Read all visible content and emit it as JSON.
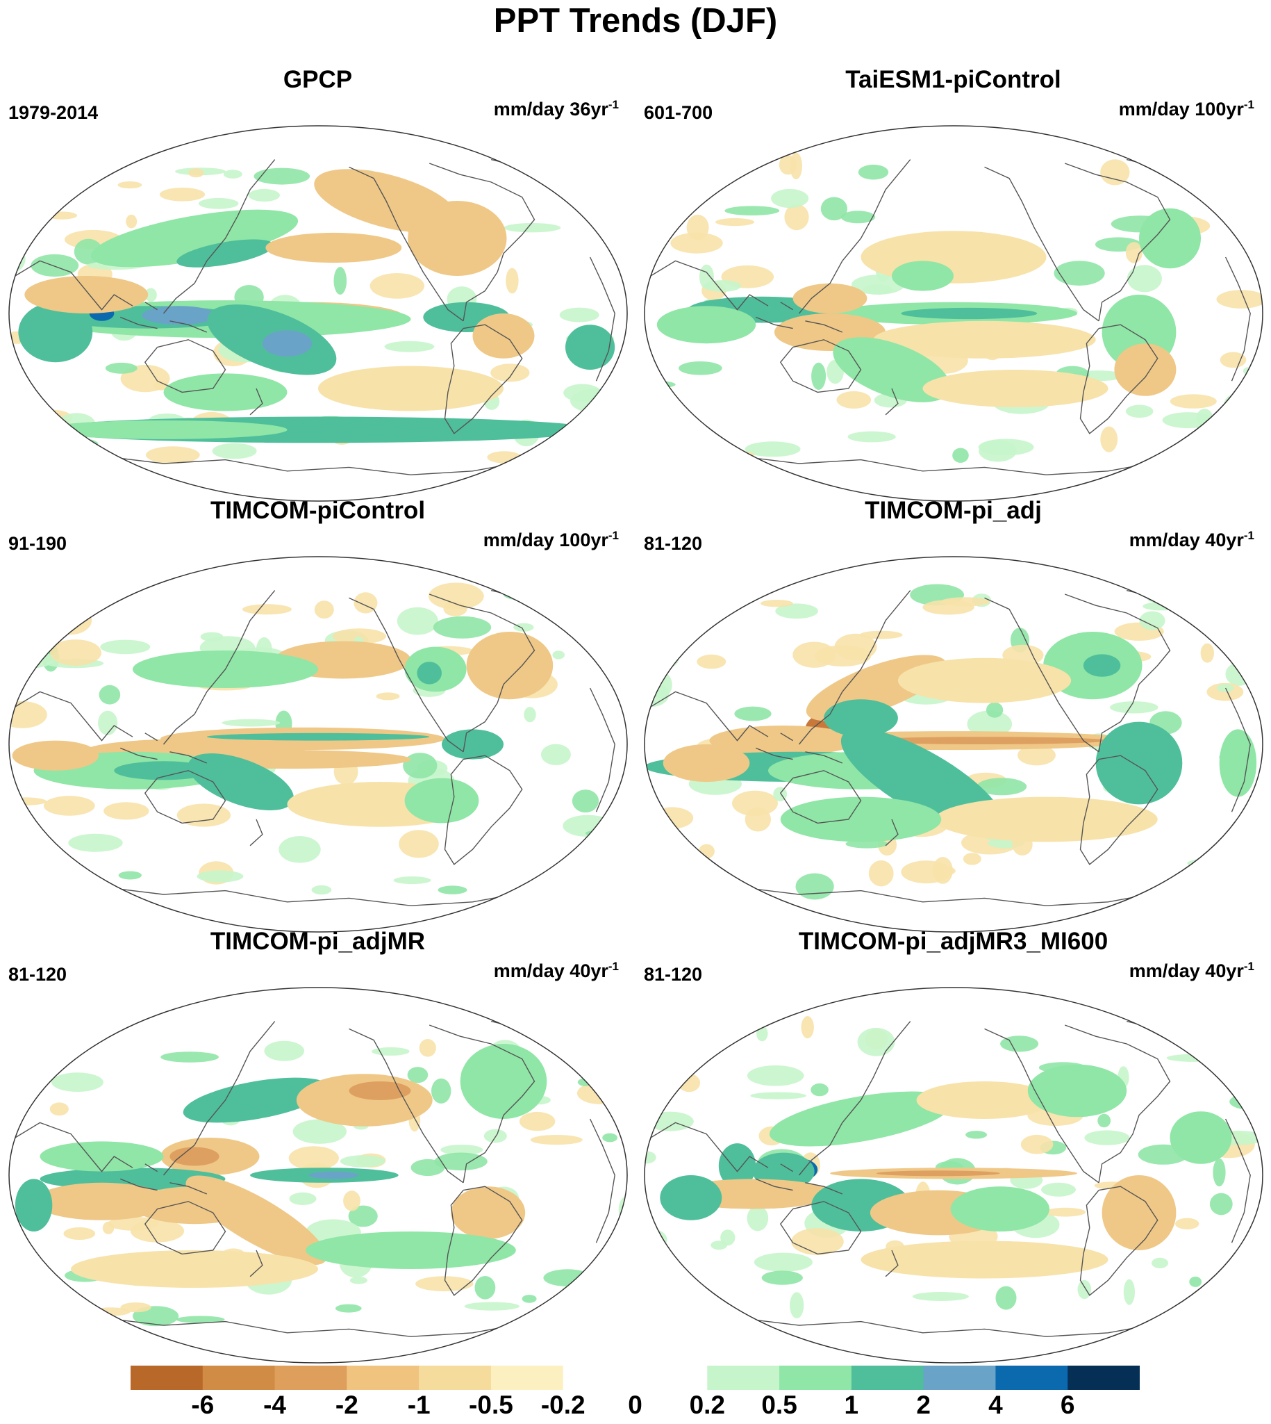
{
  "figure": {
    "title": "PPT Trends (DJF)"
  },
  "panels": [
    {
      "title": "GPCP",
      "period": "1979-2014",
      "units_main": "mm/day 36yr",
      "units_exp": "-1",
      "pattern": "gpcp"
    },
    {
      "title": "TaiESM1-piControl",
      "period": "601-700",
      "units_main": "mm/day 100yr",
      "units_exp": "-1",
      "pattern": "taiesm"
    },
    {
      "title": "TIMCOM-piControl",
      "period": "91-190",
      "units_main": "mm/day 100yr",
      "units_exp": "-1",
      "pattern": "timcom"
    },
    {
      "title": "TIMCOM-pi_adj",
      "period": "81-120",
      "units_main": "mm/day 40yr",
      "units_exp": "-1",
      "pattern": "adj"
    },
    {
      "title": "TIMCOM-pi_adjMR",
      "period": "81-120",
      "units_main": "mm/day 40yr",
      "units_exp": "-1",
      "pattern": "adjmr"
    },
    {
      "title": "TIMCOM-pi_adjMR3_MI600",
      "period": "81-120",
      "units_main": "mm/day 40yr",
      "units_exp": "-1",
      "pattern": "mi600"
    }
  ],
  "colorbar": {
    "labels": [
      "-6",
      "-4",
      "-2",
      "-1",
      "-0.5",
      "-0.2",
      "0",
      "0.2",
      "0.5",
      "1",
      "2",
      "4",
      "6"
    ],
    "colors": [
      "#b8692a",
      "#d08c45",
      "#df9f5c",
      "#f0c47f",
      "#f6dc9c",
      "#fcf0c0",
      "#ffffff",
      "#ffffff",
      "#c6f5cb",
      "#8fe6a6",
      "#4fbf9b",
      "#6aa3c8",
      "#0a6aad",
      "#062f56"
    ]
  },
  "legend_colors": {
    "brown_strong": "#c8783a",
    "brown": "#dea060",
    "tan": "#efc887",
    "light_tan": "#f7e2aa",
    "light_green": "#c6f5cb",
    "green": "#8fe6a6",
    "teal": "#4fbf9b",
    "blue": "#6aa3c8",
    "dark_blue": "#0a6aad",
    "coast": "#555555"
  }
}
